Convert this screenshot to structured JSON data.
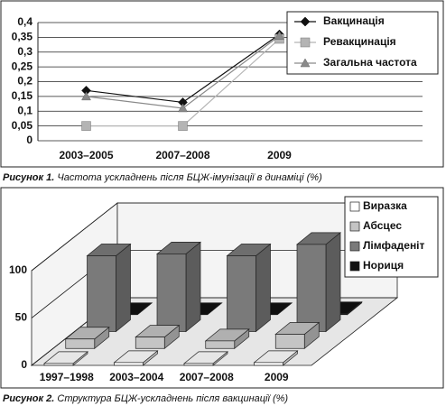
{
  "chart_data": [
    {
      "type": "line",
      "caption_label": "Рисунок 1.",
      "caption": "Частота ускладнень після БЦЖ-імунізації в динаміці (%)",
      "categories": [
        "2003–2005",
        "2007–2008",
        "2009"
      ],
      "ylim": [
        0,
        0.4
      ],
      "yticks": [
        0,
        {
          "value": 0.05,
          "label": "0,05"
        },
        {
          "value": 0.1,
          "label": "0,1"
        },
        {
          "value": 0.15,
          "label": "0,15"
        },
        {
          "value": 0.2,
          "label": "0,2"
        },
        {
          "value": 0.25,
          "label": "0,25"
        },
        {
          "value": 0.3,
          "label": "0,3"
        },
        {
          "value": 0.35,
          "label": "0,35"
        },
        {
          "value": 0.4,
          "label": "0,4"
        }
      ],
      "grid": true,
      "legend": "top-right",
      "series": [
        {
          "name": "Вакцинація",
          "color": "#111111",
          "marker": "diamond",
          "values": [
            0.17,
            0.13,
            0.36
          ]
        },
        {
          "name": "Ревакцинація",
          "color": "#b4b4b4",
          "marker": "square",
          "values": [
            0.05,
            0.05,
            0.345
          ]
        },
        {
          "name": "Загальна частота",
          "color": "#8a8a8a",
          "marker": "triangle",
          "values": [
            0.15,
            0.11,
            0.355
          ]
        }
      ]
    },
    {
      "type": "bar3d",
      "caption_label": "Рисунок 2.",
      "caption": "Структура БЦЖ-ускладнень після вакцинації (%)",
      "categories": [
        "1997–1998",
        "2003–2004",
        "2007–2008",
        "2009"
      ],
      "ylim": [
        0,
        100
      ],
      "yticks": [
        0,
        50,
        100
      ],
      "grid": true,
      "legend": "top-right",
      "series": [
        {
          "name": "Виразка",
          "color": "#ffffff",
          "values": [
            2,
            3,
            2,
            3
          ]
        },
        {
          "name": "Абсцес",
          "color": "#c4c4c4",
          "values": [
            10,
            12,
            8,
            15
          ]
        },
        {
          "name": "Лімфаденіт",
          "color": "#7a7a7a",
          "values": [
            80,
            82,
            80,
            92
          ]
        },
        {
          "name": "Нориця",
          "color": "#111111",
          "values": [
            0,
            0,
            0,
            1
          ]
        }
      ]
    }
  ]
}
